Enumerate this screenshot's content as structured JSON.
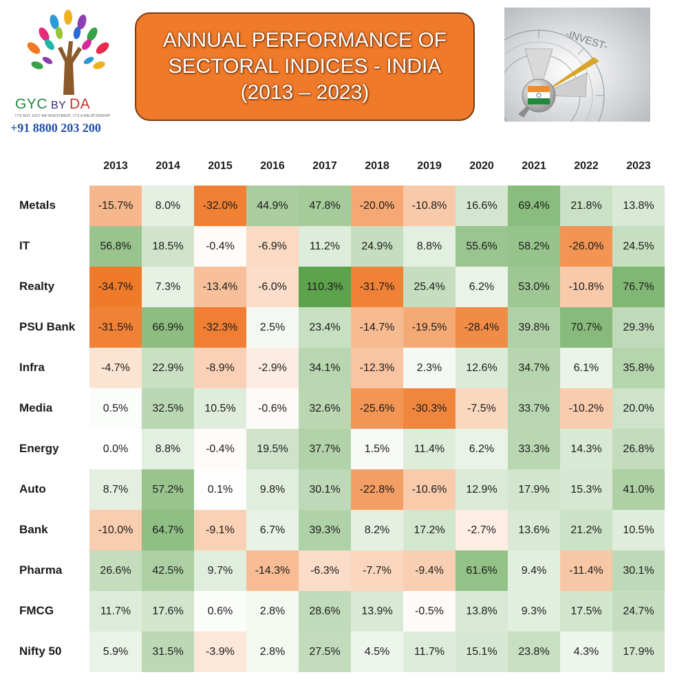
{
  "logo": {
    "brand_gyc": "GYC",
    "brand_by": " BY ",
    "brand_da": "DA",
    "tagline": "IT'S NOT JUST AN INVESTMENT, IT'S A RELATIONSHIP",
    "phone": "+91 8800 203 200"
  },
  "title": {
    "line1": "ANNUAL PERFORMANCE OF",
    "line2": "SECTORAL INDICES  - INDIA",
    "line3": "(2013 – 2023)"
  },
  "image": {
    "invest_label": "-INVEST-"
  },
  "colors": {
    "deep_orange": "#ef7a2a",
    "deep_green": "#4f9a3c"
  },
  "chart_data": {
    "type": "table",
    "years": [
      "2013",
      "2014",
      "2015",
      "2016",
      "2017",
      "2018",
      "2019",
      "2020",
      "2021",
      "2022",
      "2023"
    ],
    "rows": [
      {
        "label": "Metals",
        "values": [
          -15.7,
          8.0,
          -32.0,
          44.9,
          47.8,
          -20.0,
          -10.8,
          16.6,
          69.4,
          21.8,
          13.8
        ]
      },
      {
        "label": "IT",
        "values": [
          56.8,
          18.5,
          -0.4,
          -6.9,
          11.2,
          24.9,
          8.8,
          55.6,
          58.2,
          -26.0,
          24.5
        ]
      },
      {
        "label": "Realty",
        "values": [
          -34.7,
          7.3,
          -13.4,
          -6.0,
          110.3,
          -31.7,
          25.4,
          6.2,
          53.0,
          -10.8,
          76.7
        ]
      },
      {
        "label": "PSU Bank",
        "values": [
          -31.5,
          66.9,
          -32.3,
          2.5,
          23.4,
          -14.7,
          -19.5,
          -28.4,
          39.8,
          70.7,
          29.3
        ]
      },
      {
        "label": "Infra",
        "values": [
          -4.7,
          22.9,
          -8.9,
          -2.9,
          34.1,
          -12.3,
          2.3,
          12.6,
          34.7,
          6.1,
          35.8
        ]
      },
      {
        "label": "Media",
        "values": [
          0.5,
          32.5,
          10.5,
          -0.6,
          32.6,
          -25.6,
          -30.3,
          -7.5,
          33.7,
          -10.2,
          20.0
        ]
      },
      {
        "label": "Energy",
        "values": [
          0.0,
          8.8,
          -0.4,
          19.5,
          37.7,
          1.5,
          11.4,
          6.2,
          33.3,
          14.3,
          26.8
        ]
      },
      {
        "label": "Auto",
        "values": [
          8.7,
          57.2,
          0.1,
          9.8,
          30.1,
          -22.8,
          -10.6,
          12.9,
          17.9,
          15.3,
          41.0
        ]
      },
      {
        "label": "Bank",
        "values": [
          -10.0,
          64.7,
          -9.1,
          6.7,
          39.3,
          8.2,
          17.2,
          -2.7,
          13.6,
          21.2,
          10.5
        ]
      },
      {
        "label": "Pharma",
        "values": [
          26.6,
          42.5,
          9.7,
          -14.3,
          -6.3,
          -7.7,
          -9.4,
          61.6,
          9.4,
          -11.4,
          30.1
        ]
      },
      {
        "label": "FMCG",
        "values": [
          11.7,
          17.6,
          0.6,
          2.8,
          28.6,
          13.9,
          -0.5,
          13.8,
          9.3,
          17.5,
          24.7
        ]
      },
      {
        "label": "Nifty 50",
        "values": [
          5.9,
          31.5,
          -3.9,
          2.8,
          27.5,
          4.5,
          11.7,
          15.1,
          23.8,
          4.3,
          17.9
        ]
      }
    ]
  }
}
